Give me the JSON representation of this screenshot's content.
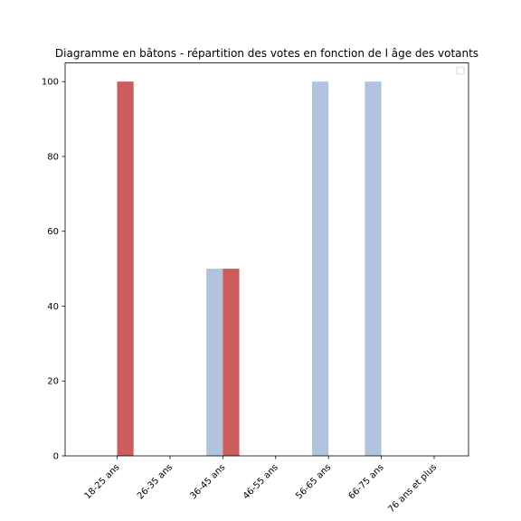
{
  "chart_data": {
    "type": "bar",
    "title": "Diagramme en bâtons - répartition des votes en fonction de l âge des votants",
    "xlabel": "",
    "ylabel": "",
    "categories": [
      "18-25 ans",
      "26-35 ans",
      "36-45 ans",
      "46-55 ans",
      "56-65 ans",
      "66-75 ans",
      "76 ans et plus"
    ],
    "series": [
      {
        "color": "#b0c4de",
        "values": [
          0,
          0,
          50,
          0,
          100,
          100,
          0
        ]
      },
      {
        "color": "#cd5c5c",
        "values": [
          100,
          0,
          50,
          0,
          0,
          0,
          0
        ]
      }
    ],
    "ylim": [
      0,
      105
    ],
    "yticks": [
      0,
      20,
      40,
      60,
      80,
      100
    ],
    "grid": false,
    "legend": "top-right"
  }
}
